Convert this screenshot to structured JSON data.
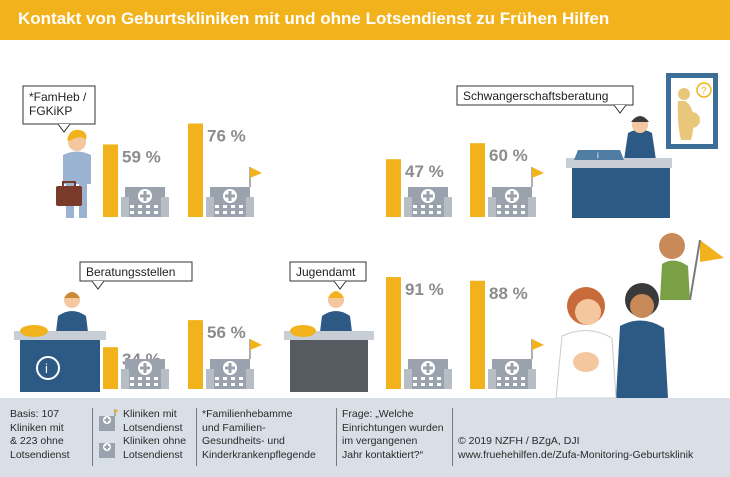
{
  "title": "Kontakt von Geburtskliniken mit und ohne Lotsendienst zu Frühen Hilfen",
  "colors": {
    "accent": "#f2b21b",
    "bar": "#f2b21b",
    "value_text": "#8c8c8c",
    "hospital": "#9aa3ad",
    "footer_bg": "#d9dfe6"
  },
  "chart_data": [
    {
      "type": "bar",
      "group": "*FamHeb / FGKiKP",
      "categories": [
        "Kliniken ohne Lotsendienst",
        "Kliniken mit Lotsendienst"
      ],
      "values": [
        59,
        76
      ],
      "value_labels": [
        "59 %",
        "76 %"
      ],
      "ylim": [
        0,
        100
      ]
    },
    {
      "type": "bar",
      "group": "Schwangerschaftsberatung",
      "categories": [
        "Kliniken ohne Lotsendienst",
        "Kliniken mit Lotsendienst"
      ],
      "values": [
        47,
        60
      ],
      "value_labels": [
        "47 %",
        "60 %"
      ],
      "ylim": [
        0,
        100
      ]
    },
    {
      "type": "bar",
      "group": "Beratungsstellen",
      "categories": [
        "Kliniken ohne Lotsendienst",
        "Kliniken mit Lotsendienst"
      ],
      "values": [
        34,
        56
      ],
      "value_labels": [
        "34 %",
        "56 %"
      ],
      "ylim": [
        0,
        100
      ]
    },
    {
      "type": "bar",
      "group": "Jugendamt",
      "categories": [
        "Kliniken ohne Lotsendienst",
        "Kliniken mit Lotsendienst"
      ],
      "values": [
        91,
        88
      ],
      "value_labels": [
        "91 %",
        "88 %"
      ],
      "ylim": [
        0,
        100
      ]
    }
  ],
  "footer": {
    "basis": [
      "Basis: 107",
      "Kliniken mit",
      "& 223 ohne",
      "Lotsendienst"
    ],
    "legend_with": [
      "Kliniken mit",
      "Lotsendienst"
    ],
    "legend_without": [
      "Kliniken ohne",
      "Lotsendienst"
    ],
    "footnote": [
      "*Familienhebamme",
      "und Familien-",
      "Gesundheits- und",
      "Kinderkrankenpflegende"
    ],
    "question": [
      "Frage: „Welche",
      "Einrichtungen wurden",
      "im vergangenen",
      "Jahr kontaktiert?“"
    ],
    "copyright": "© 2019 NZFH / BZgA, DJI",
    "url": "www.fruehehilfen.de/Zufa-Monitoring-Geburtsklinik"
  }
}
